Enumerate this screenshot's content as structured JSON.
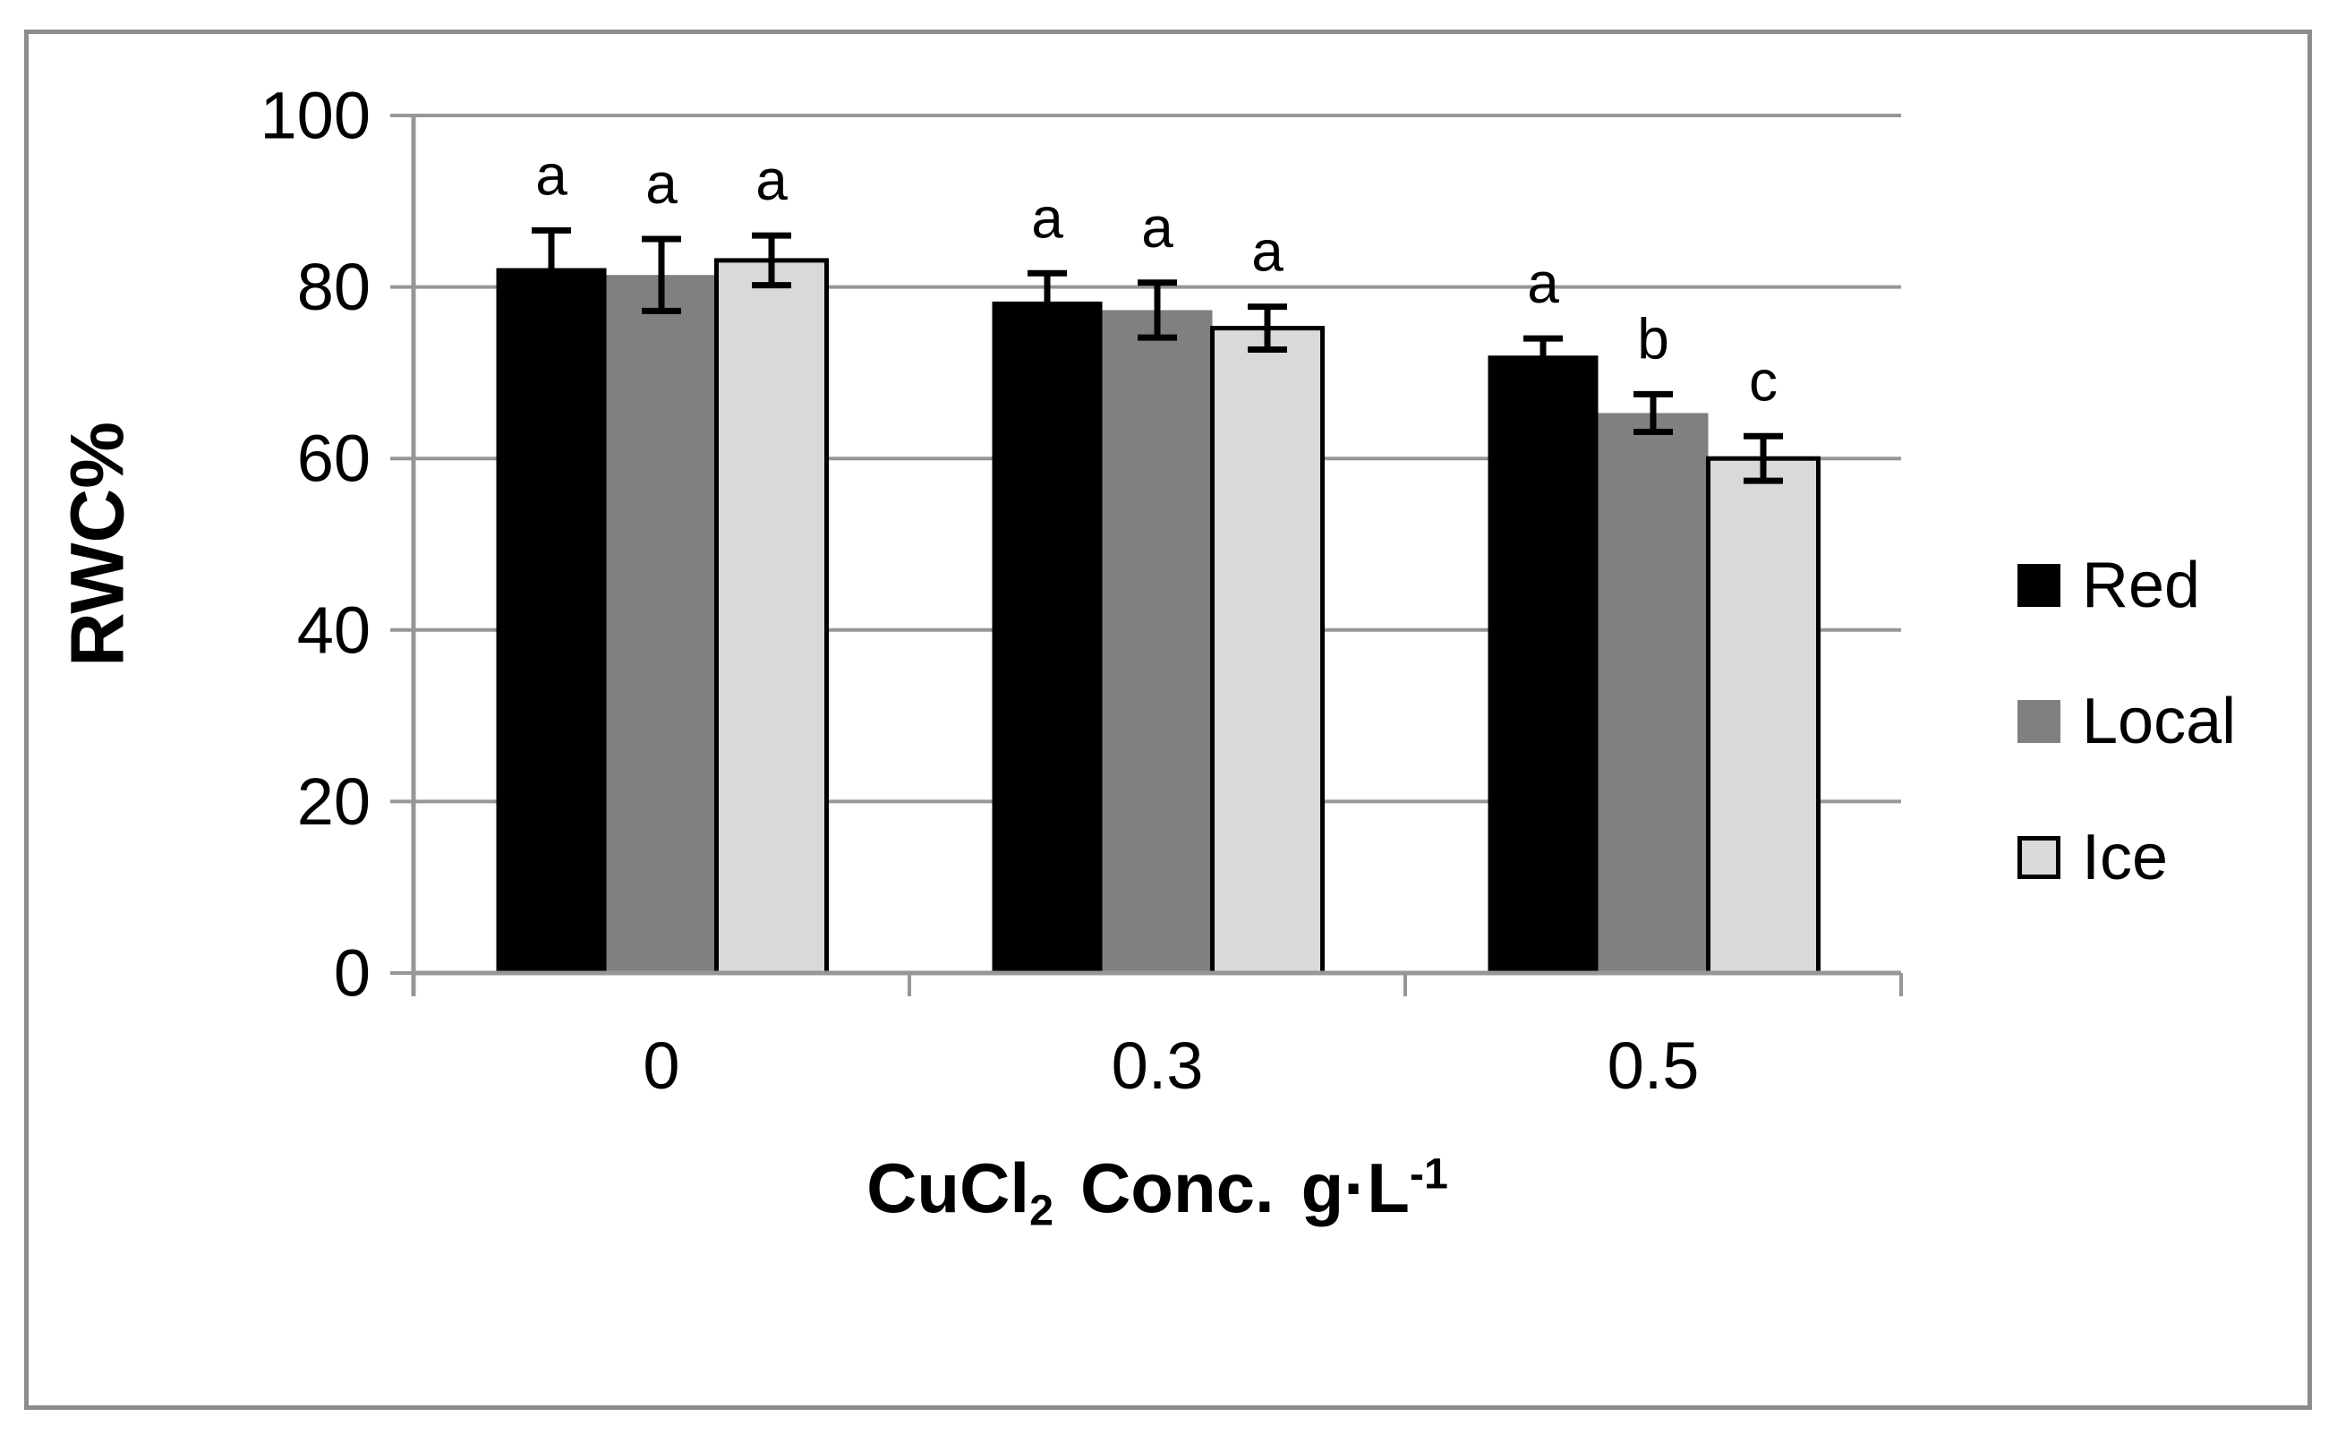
{
  "chart_data": {
    "type": "bar",
    "title": "",
    "categories": [
      "0",
      "0.3",
      "0.5"
    ],
    "series": [
      {
        "name": "Red",
        "color": "#000000",
        "border": "none",
        "values": [
          82.2,
          78.3,
          72.0
        ],
        "errors": [
          4.4,
          3.3,
          2.0
        ],
        "letters": [
          "a",
          "a",
          "a"
        ]
      },
      {
        "name": "Local",
        "color": "#808080",
        "border": "none",
        "values": [
          81.4,
          77.3,
          65.3
        ],
        "errors": [
          4.2,
          3.2,
          2.2
        ],
        "letters": [
          "a",
          "a",
          "b"
        ]
      },
      {
        "name": "Ice",
        "color": "#d9d9d9",
        "border": "#000000",
        "values": [
          83.1,
          75.2,
          60.0
        ],
        "errors": [
          2.9,
          2.5,
          2.6
        ],
        "letters": [
          "a",
          "a",
          "c"
        ]
      }
    ],
    "ylabel": "RWC%",
    "xlabel": {
      "formula": "CuCl",
      "formula_sub": "2",
      "text": "Conc.",
      "unit": "g·L",
      "unit_sup": "-1"
    },
    "yticks": [
      0,
      20,
      40,
      60,
      80,
      100
    ],
    "ylim": [
      0,
      100
    ],
    "grid": "horizontal",
    "legend_position": "right"
  },
  "colors": {
    "gridline": "#969696",
    "axis": "#969696",
    "frame_border": "#8c8c8c",
    "background": "#ffffff",
    "error_bar": "#000000",
    "text": "#000000"
  }
}
